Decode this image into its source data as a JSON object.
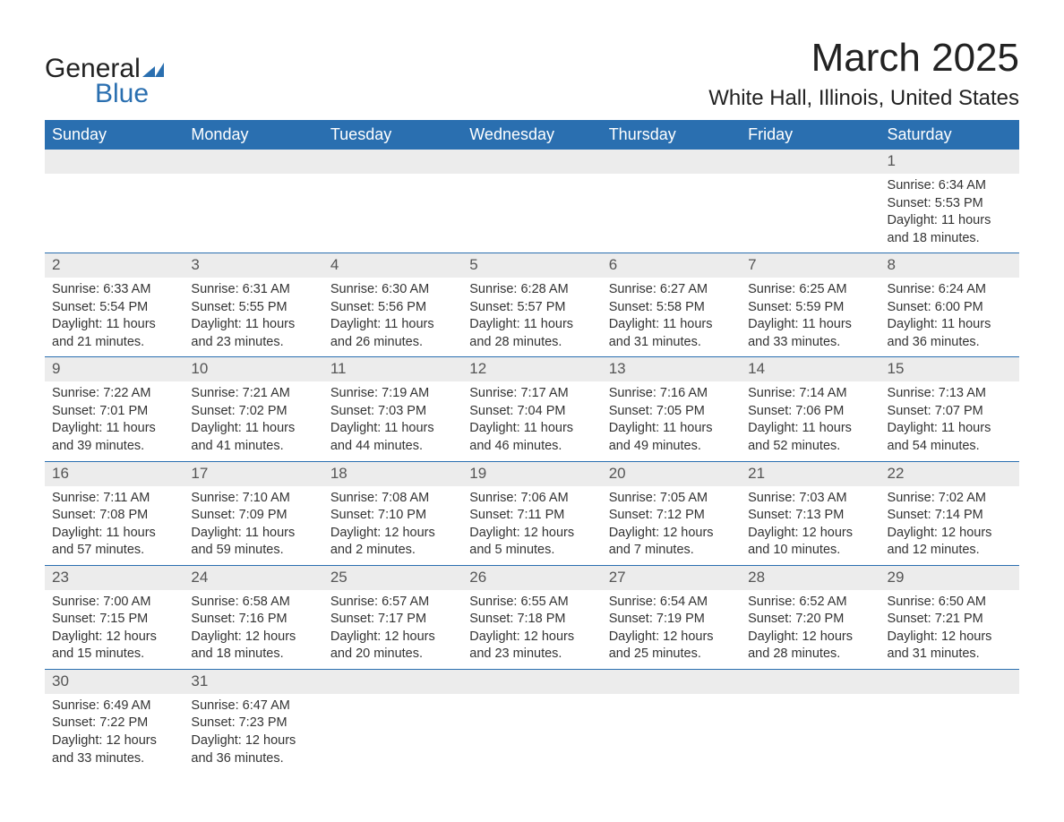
{
  "brand": {
    "word1": "General",
    "word2": "Blue",
    "mark_color": "#2a6fb0"
  },
  "title": "March 2025",
  "location": "White Hall, Illinois, United States",
  "colors": {
    "header_bg": "#2a6fb0",
    "header_text": "#ffffff",
    "daynum_bg": "#ececec",
    "body_text": "#333333",
    "page_bg": "#ffffff"
  },
  "typography": {
    "title_fontsize": 44,
    "location_fontsize": 24,
    "th_fontsize": 18,
    "cell_fontsize": 14.5
  },
  "table": {
    "columns": [
      "Sunday",
      "Monday",
      "Tuesday",
      "Wednesday",
      "Thursday",
      "Friday",
      "Saturday"
    ],
    "weeks": [
      [
        null,
        null,
        null,
        null,
        null,
        null,
        {
          "n": "1",
          "sunrise": "6:34 AM",
          "sunset": "5:53 PM",
          "d1": "Daylight: 11 hours",
          "d2": "and 18 minutes."
        }
      ],
      [
        {
          "n": "2",
          "sunrise": "6:33 AM",
          "sunset": "5:54 PM",
          "d1": "Daylight: 11 hours",
          "d2": "and 21 minutes."
        },
        {
          "n": "3",
          "sunrise": "6:31 AM",
          "sunset": "5:55 PM",
          "d1": "Daylight: 11 hours",
          "d2": "and 23 minutes."
        },
        {
          "n": "4",
          "sunrise": "6:30 AM",
          "sunset": "5:56 PM",
          "d1": "Daylight: 11 hours",
          "d2": "and 26 minutes."
        },
        {
          "n": "5",
          "sunrise": "6:28 AM",
          "sunset": "5:57 PM",
          "d1": "Daylight: 11 hours",
          "d2": "and 28 minutes."
        },
        {
          "n": "6",
          "sunrise": "6:27 AM",
          "sunset": "5:58 PM",
          "d1": "Daylight: 11 hours",
          "d2": "and 31 minutes."
        },
        {
          "n": "7",
          "sunrise": "6:25 AM",
          "sunset": "5:59 PM",
          "d1": "Daylight: 11 hours",
          "d2": "and 33 minutes."
        },
        {
          "n": "8",
          "sunrise": "6:24 AM",
          "sunset": "6:00 PM",
          "d1": "Daylight: 11 hours",
          "d2": "and 36 minutes."
        }
      ],
      [
        {
          "n": "9",
          "sunrise": "7:22 AM",
          "sunset": "7:01 PM",
          "d1": "Daylight: 11 hours",
          "d2": "and 39 minutes."
        },
        {
          "n": "10",
          "sunrise": "7:21 AM",
          "sunset": "7:02 PM",
          "d1": "Daylight: 11 hours",
          "d2": "and 41 minutes."
        },
        {
          "n": "11",
          "sunrise": "7:19 AM",
          "sunset": "7:03 PM",
          "d1": "Daylight: 11 hours",
          "d2": "and 44 minutes."
        },
        {
          "n": "12",
          "sunrise": "7:17 AM",
          "sunset": "7:04 PM",
          "d1": "Daylight: 11 hours",
          "d2": "and 46 minutes."
        },
        {
          "n": "13",
          "sunrise": "7:16 AM",
          "sunset": "7:05 PM",
          "d1": "Daylight: 11 hours",
          "d2": "and 49 minutes."
        },
        {
          "n": "14",
          "sunrise": "7:14 AM",
          "sunset": "7:06 PM",
          "d1": "Daylight: 11 hours",
          "d2": "and 52 minutes."
        },
        {
          "n": "15",
          "sunrise": "7:13 AM",
          "sunset": "7:07 PM",
          "d1": "Daylight: 11 hours",
          "d2": "and 54 minutes."
        }
      ],
      [
        {
          "n": "16",
          "sunrise": "7:11 AM",
          "sunset": "7:08 PM",
          "d1": "Daylight: 11 hours",
          "d2": "and 57 minutes."
        },
        {
          "n": "17",
          "sunrise": "7:10 AM",
          "sunset": "7:09 PM",
          "d1": "Daylight: 11 hours",
          "d2": "and 59 minutes."
        },
        {
          "n": "18",
          "sunrise": "7:08 AM",
          "sunset": "7:10 PM",
          "d1": "Daylight: 12 hours",
          "d2": "and 2 minutes."
        },
        {
          "n": "19",
          "sunrise": "7:06 AM",
          "sunset": "7:11 PM",
          "d1": "Daylight: 12 hours",
          "d2": "and 5 minutes."
        },
        {
          "n": "20",
          "sunrise": "7:05 AM",
          "sunset": "7:12 PM",
          "d1": "Daylight: 12 hours",
          "d2": "and 7 minutes."
        },
        {
          "n": "21",
          "sunrise": "7:03 AM",
          "sunset": "7:13 PM",
          "d1": "Daylight: 12 hours",
          "d2": "and 10 minutes."
        },
        {
          "n": "22",
          "sunrise": "7:02 AM",
          "sunset": "7:14 PM",
          "d1": "Daylight: 12 hours",
          "d2": "and 12 minutes."
        }
      ],
      [
        {
          "n": "23",
          "sunrise": "7:00 AM",
          "sunset": "7:15 PM",
          "d1": "Daylight: 12 hours",
          "d2": "and 15 minutes."
        },
        {
          "n": "24",
          "sunrise": "6:58 AM",
          "sunset": "7:16 PM",
          "d1": "Daylight: 12 hours",
          "d2": "and 18 minutes."
        },
        {
          "n": "25",
          "sunrise": "6:57 AM",
          "sunset": "7:17 PM",
          "d1": "Daylight: 12 hours",
          "d2": "and 20 minutes."
        },
        {
          "n": "26",
          "sunrise": "6:55 AM",
          "sunset": "7:18 PM",
          "d1": "Daylight: 12 hours",
          "d2": "and 23 minutes."
        },
        {
          "n": "27",
          "sunrise": "6:54 AM",
          "sunset": "7:19 PM",
          "d1": "Daylight: 12 hours",
          "d2": "and 25 minutes."
        },
        {
          "n": "28",
          "sunrise": "6:52 AM",
          "sunset": "7:20 PM",
          "d1": "Daylight: 12 hours",
          "d2": "and 28 minutes."
        },
        {
          "n": "29",
          "sunrise": "6:50 AM",
          "sunset": "7:21 PM",
          "d1": "Daylight: 12 hours",
          "d2": "and 31 minutes."
        }
      ],
      [
        {
          "n": "30",
          "sunrise": "6:49 AM",
          "sunset": "7:22 PM",
          "d1": "Daylight: 12 hours",
          "d2": "and 33 minutes."
        },
        {
          "n": "31",
          "sunrise": "6:47 AM",
          "sunset": "7:23 PM",
          "d1": "Daylight: 12 hours",
          "d2": "and 36 minutes."
        },
        null,
        null,
        null,
        null,
        null
      ]
    ],
    "labels": {
      "sunrise_prefix": "Sunrise: ",
      "sunset_prefix": "Sunset: "
    }
  }
}
